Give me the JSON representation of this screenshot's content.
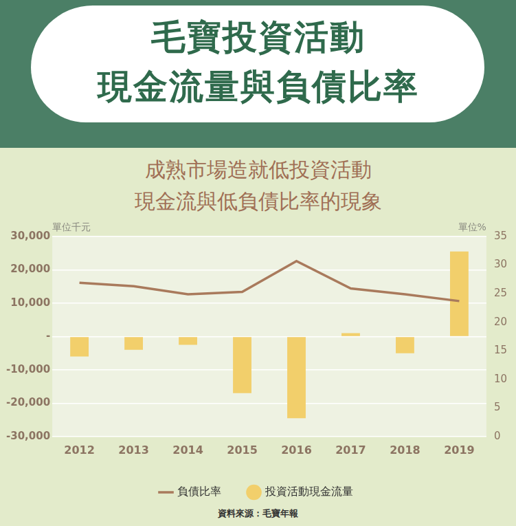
{
  "header": {
    "title": [
      "毛寶投資活動",
      "現金流量與負債比率"
    ],
    "subtitle": [
      "成熟市場造就低投資活動",
      "現金流與低負債比率的現象"
    ]
  },
  "chart_data": {
    "type": "bar",
    "categories": [
      "2012",
      "2013",
      "2014",
      "2015",
      "2016",
      "2017",
      "2018",
      "2019"
    ],
    "series": [
      {
        "name": "投資活動現金流量",
        "type": "bar",
        "color": "#f2cf6b",
        "values": [
          -6000,
          -4000,
          -2500,
          -17000,
          -24500,
          1000,
          -5000,
          25500
        ]
      },
      {
        "name": "負債比率",
        "type": "line",
        "axis": "y2",
        "color": "#a97a5c",
        "values": [
          26.9,
          26.3,
          24.9,
          25.3,
          30.7,
          25.9,
          24.9,
          23.7
        ]
      }
    ],
    "ylabel": "單位千元",
    "y2label": "單位%",
    "ylim": [
      -30000,
      30000
    ],
    "yticks": [
      {
        "value": -30000,
        "label": "-30,000"
      },
      {
        "value": -20000,
        "label": "-20,000"
      },
      {
        "value": -10000,
        "label": "-10,000"
      },
      {
        "value": 0,
        "label": "-"
      },
      {
        "value": 10000,
        "label": "10,000"
      },
      {
        "value": 20000,
        "label": "20,000"
      },
      {
        "value": 30000,
        "label": "30,000"
      }
    ],
    "y2lim": [
      0,
      35
    ],
    "y2ticks": [
      0,
      5,
      10,
      15,
      20,
      25,
      30,
      35
    ],
    "grid": true,
    "legend": "bottom"
  },
  "source": "資料來源：毛寶年報"
}
